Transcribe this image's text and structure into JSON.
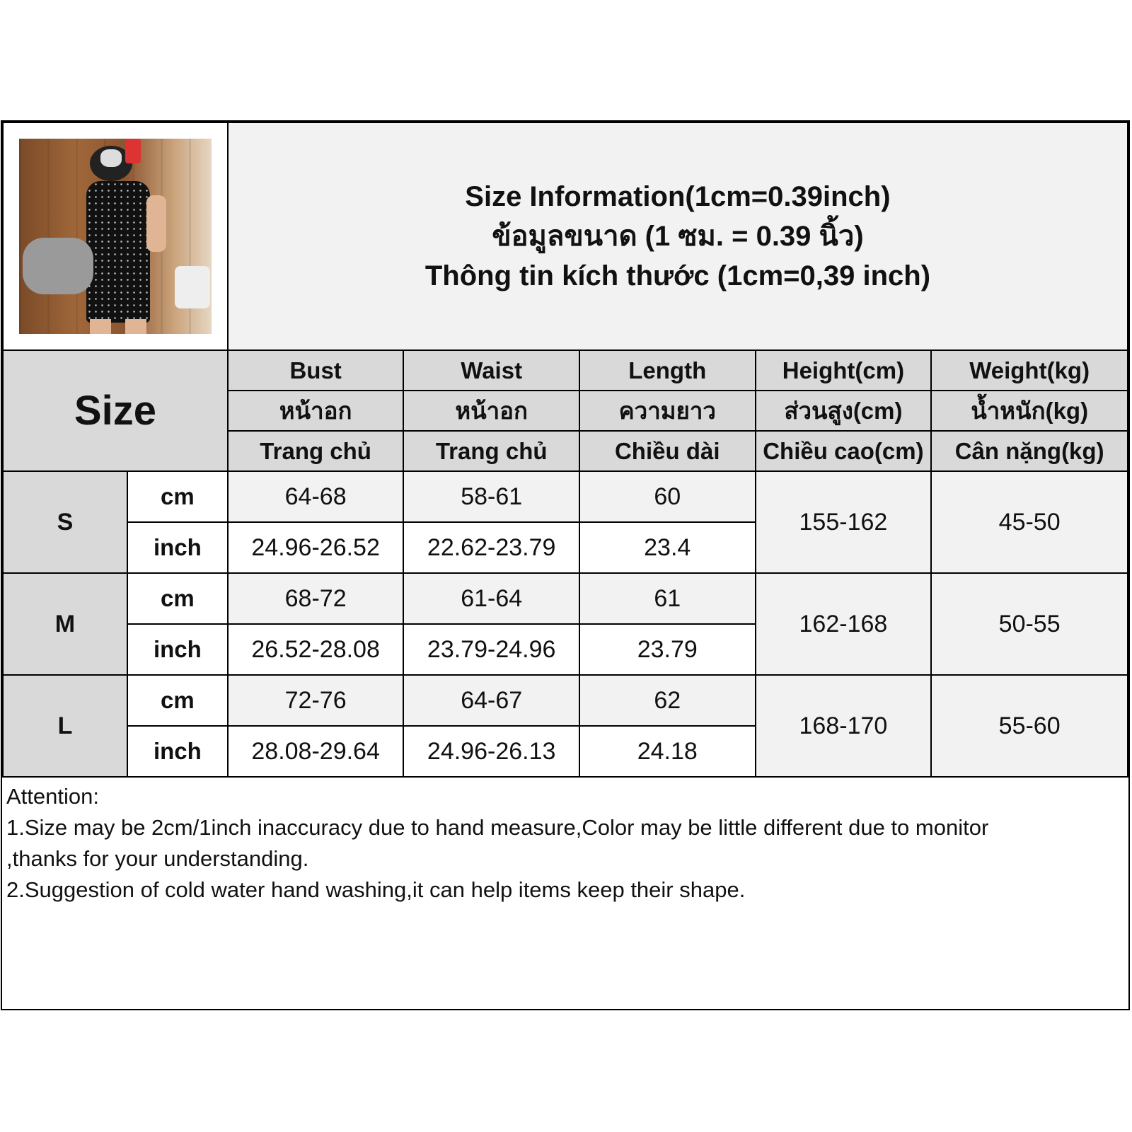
{
  "title": {
    "line1": "Size Information(1cm=0.39inch)",
    "line2": "ข้อมูลขนาด (1 ซม. = 0.39 นิ้ว)",
    "line3": "Thông tin kích thước (1cm=0,39 inch)"
  },
  "size_label": "Size",
  "columns": [
    {
      "en": "Bust",
      "th": "หน้าอก",
      "vi": "Trang chủ"
    },
    {
      "en": "Waist",
      "th": "หน้าอก",
      "vi": "Trang chủ"
    },
    {
      "en": "Length",
      "th": "ความยาว",
      "vi": "Chiều dài"
    },
    {
      "en": "Height(cm)",
      "th": "ส่วนสูง(cm)",
      "vi": "Chiều cao(cm)"
    },
    {
      "en": "Weight(kg)",
      "th": "น้ำหนัก(kg)",
      "vi": "Cân nặng(kg)"
    }
  ],
  "sizes": [
    {
      "size": "S",
      "cm_label": "cm",
      "inch_label": "inch",
      "cm": [
        "64-68",
        "58-61",
        "60"
      ],
      "inch": [
        "24.96-26.52",
        "22.62-23.79",
        "23.4"
      ],
      "height": "155-162",
      "weight": "45-50"
    },
    {
      "size": "M",
      "cm_label": "cm",
      "inch_label": "inch",
      "cm": [
        "68-72",
        "61-64",
        "61"
      ],
      "inch": [
        "26.52-28.08",
        "23.79-24.96",
        "23.79"
      ],
      "height": "162-168",
      "weight": "50-55"
    },
    {
      "size": "L",
      "cm_label": "cm",
      "inch_label": "inch",
      "cm": [
        "72-76",
        "64-67",
        "62"
      ],
      "inch": [
        "28.08-29.64",
        "24.96-26.13",
        "24.18"
      ],
      "height": "168-170",
      "weight": "55-60"
    }
  ],
  "notes": {
    "heading": "Attention:",
    "line1": "1.Size may be 2cm/1inch inaccuracy due to hand measure,Color may be little different due to monitor",
    "line2": ",thanks for your understanding.",
    "line3": "2.Suggestion of cold water hand washing,it can help items keep their shape."
  }
}
